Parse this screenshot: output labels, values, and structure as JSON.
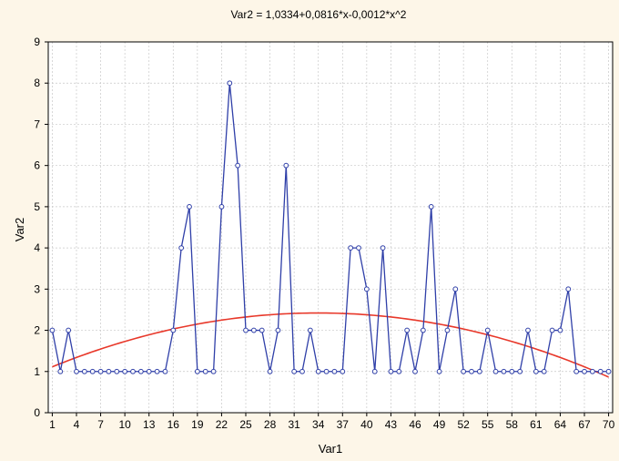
{
  "chart_data": {
    "type": "line",
    "title": "Var2 = 1,0334+0,0816*x-0,0012*x^2",
    "xlabel": "Var1",
    "ylabel": "Var2",
    "xlim": [
      0.5,
      70.5
    ],
    "ylim": [
      0,
      9
    ],
    "xticks": [
      1,
      4,
      7,
      10,
      13,
      16,
      19,
      22,
      25,
      28,
      31,
      34,
      37,
      40,
      43,
      46,
      49,
      52,
      55,
      58,
      61,
      64,
      67,
      70
    ],
    "xtick_labels": [
      "1",
      "4",
      "7",
      "10",
      "13",
      "16",
      "19",
      "22",
      "25",
      "28",
      "31",
      "34",
      "37",
      "40",
      "43",
      "46",
      "49",
      "52",
      "55",
      "58",
      "61",
      "64",
      "67",
      "70"
    ],
    "yticks": [
      0,
      1,
      2,
      3,
      4,
      5,
      6,
      7,
      8,
      9
    ],
    "grid": true,
    "series": [
      {
        "kind": "line-markers",
        "color": "#2f3fa8",
        "marker_color": "#ffffff",
        "x": [
          1,
          2,
          3,
          4,
          5,
          6,
          7,
          8,
          9,
          10,
          11,
          12,
          13,
          14,
          15,
          16,
          17,
          18,
          19,
          20,
          21,
          22,
          23,
          24,
          25,
          26,
          27,
          28,
          29,
          30,
          31,
          32,
          33,
          34,
          35,
          36,
          37,
          38,
          39,
          40,
          41,
          42,
          43,
          44,
          45,
          46,
          47,
          48,
          49,
          50,
          51,
          52,
          53,
          54,
          55,
          56,
          57,
          58,
          59,
          60,
          61,
          62,
          63,
          64,
          65,
          66,
          67,
          68,
          69,
          70
        ],
        "values": [
          2,
          1,
          2,
          1,
          1,
          1,
          1,
          1,
          1,
          1,
          1,
          1,
          1,
          1,
          1,
          2,
          4,
          5,
          1,
          1,
          1,
          5,
          8,
          6,
          2,
          2,
          2,
          1,
          2,
          6,
          1,
          1,
          2,
          1,
          1,
          1,
          1,
          4,
          4,
          3,
          1,
          4,
          1,
          1,
          2,
          1,
          2,
          5,
          1,
          2,
          3,
          1,
          1,
          1,
          2,
          1,
          1,
          1,
          1,
          2,
          1,
          1,
          2,
          2,
          3,
          1,
          1,
          1,
          1,
          1
        ]
      },
      {
        "kind": "fit",
        "color": "#e8382a",
        "equation": {
          "a": 1.0334,
          "b": 0.0816,
          "c": -0.0012
        },
        "x_range": [
          1,
          70
        ]
      }
    ],
    "colors": {
      "background": "#fdf6e8",
      "plot_area": "#ffffff",
      "grid": "#c8c8c8",
      "axis": "#000000"
    }
  }
}
